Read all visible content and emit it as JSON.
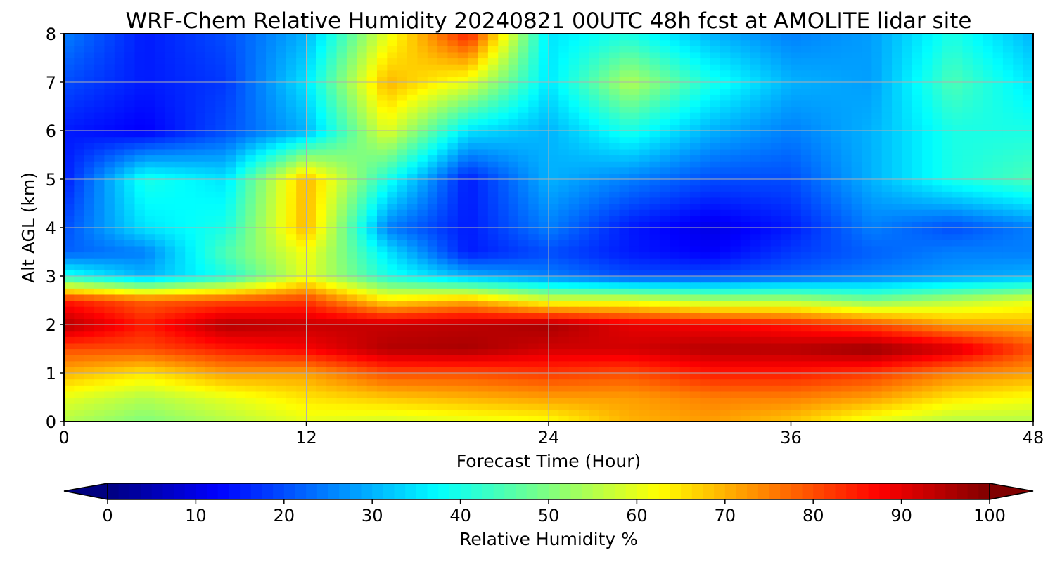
{
  "chart_data": {
    "type": "heatmap",
    "title": "WRF-Chem Relative Humidity 20240821 00UTC 48h fcst at AMOLITE lidar site",
    "xlabel": "Forecast Time (Hour)",
    "ylabel": "Alt AGL (km)",
    "xlim": [
      0,
      48
    ],
    "ylim": [
      0,
      8
    ],
    "x_ticks": [
      "0",
      "12",
      "24",
      "36",
      "48"
    ],
    "y_ticks": [
      "0",
      "1",
      "2",
      "3",
      "4",
      "5",
      "6",
      "7",
      "8"
    ],
    "grid": true,
    "colorbar": {
      "label": "Relative Humidity %",
      "colormap": "jet",
      "orientation": "horizontal",
      "extend": "both",
      "range": [
        0,
        100
      ],
      "ticks": [
        "0",
        "10",
        "20",
        "30",
        "40",
        "50",
        "60",
        "70",
        "80",
        "90",
        "100"
      ]
    },
    "x": [
      0,
      4,
      8,
      12,
      16,
      20,
      24,
      28,
      32,
      36,
      40,
      44,
      48
    ],
    "y": [
      0,
      0.5,
      1,
      1.5,
      2,
      2.5,
      3,
      3.5,
      4,
      5,
      6,
      7,
      8
    ],
    "z": [
      [
        55,
        50,
        55,
        60,
        58,
        60,
        62,
        70,
        72,
        68,
        60,
        55,
        55
      ],
      [
        60,
        55,
        60,
        65,
        68,
        70,
        72,
        72,
        75,
        75,
        72,
        65,
        62
      ],
      [
        70,
        65,
        72,
        72,
        80,
        80,
        82,
        80,
        85,
        85,
        82,
        75,
        72
      ],
      [
        80,
        80,
        85,
        88,
        95,
        96,
        92,
        92,
        95,
        95,
        98,
        92,
        80
      ],
      [
        95,
        85,
        95,
        93,
        93,
        94,
        96,
        90,
        88,
        85,
        80,
        72,
        70
      ],
      [
        85,
        78,
        80,
        82,
        65,
        70,
        60,
        60,
        55,
        55,
        50,
        55,
        60
      ],
      [
        40,
        30,
        40,
        60,
        40,
        30,
        25,
        20,
        20,
        22,
        25,
        28,
        30
      ],
      [
        22,
        25,
        45,
        62,
        35,
        15,
        20,
        15,
        12,
        18,
        22,
        25,
        25
      ],
      [
        20,
        35,
        40,
        70,
        25,
        15,
        25,
        15,
        10,
        15,
        25,
        20,
        25
      ],
      [
        15,
        40,
        35,
        70,
        40,
        15,
        30,
        25,
        20,
        20,
        30,
        40,
        45
      ],
      [
        15,
        12,
        20,
        30,
        60,
        35,
        30,
        40,
        30,
        25,
        30,
        40,
        40
      ],
      [
        20,
        15,
        18,
        35,
        70,
        60,
        35,
        55,
        40,
        30,
        28,
        45,
        35
      ],
      [
        25,
        15,
        20,
        30,
        60,
        85,
        35,
        40,
        30,
        25,
        28,
        40,
        30
      ]
    ]
  }
}
